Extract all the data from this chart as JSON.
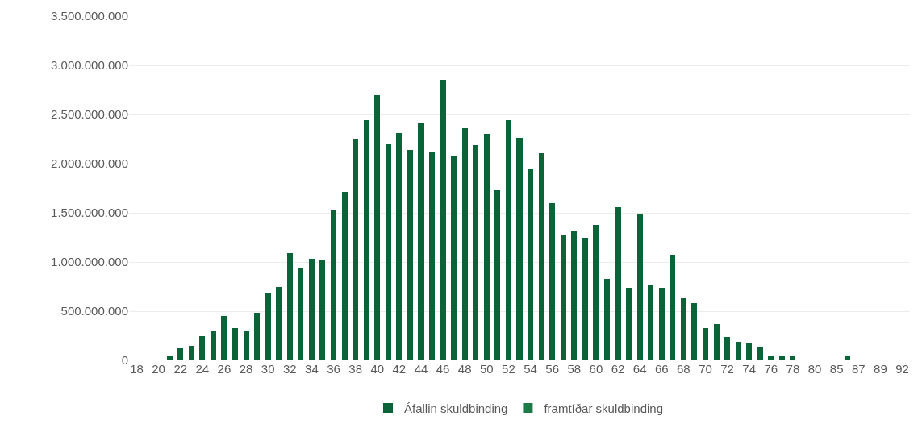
{
  "chart_data": {
    "type": "bar",
    "stacked": true,
    "categories": [
      "18",
      null,
      "20",
      null,
      "22",
      null,
      "24",
      null,
      "26",
      null,
      "28",
      null,
      "30",
      null,
      "32",
      null,
      "34",
      null,
      "36",
      null,
      "38",
      null,
      "40",
      null,
      "42",
      null,
      "44",
      null,
      "46",
      null,
      "48",
      null,
      "50",
      null,
      "52",
      null,
      "54",
      null,
      "56",
      null,
      "58",
      null,
      "60",
      null,
      "62",
      null,
      "64",
      null,
      "66",
      null,
      "68",
      null,
      "70",
      null,
      "72",
      null,
      "74",
      null,
      "76",
      null,
      "78",
      null,
      "80",
      null,
      "85",
      null,
      "87",
      null,
      "89",
      null,
      "92"
    ],
    "series": [
      {
        "name": "Áfallin skuldbinding",
        "color": "#0b6338",
        "values": [
          null,
          null,
          10000000,
          40000000,
          135000000,
          150000000,
          245000000,
          300000000,
          450000000,
          330000000,
          295000000,
          485000000,
          685000000,
          750000000,
          1090000000,
          945000000,
          1030000000,
          1025000000,
          1535000000,
          1715000000,
          2245000000,
          2445000000,
          2700000000,
          2200000000,
          2310000000,
          2140000000,
          2420000000,
          2120000000,
          2850000000,
          2085000000,
          2360000000,
          2190000000,
          2300000000,
          1730000000,
          2440000000,
          2260000000,
          1945000000,
          2105000000,
          1600000000,
          1280000000,
          1320000000,
          1245000000,
          1380000000,
          825000000,
          1560000000,
          740000000,
          1480000000,
          760000000,
          740000000,
          1070000000,
          640000000,
          580000000,
          330000000,
          370000000,
          240000000,
          190000000,
          175000000,
          140000000,
          50000000,
          50000000,
          45000000,
          10000000,
          null,
          10000000,
          null,
          40000000,
          null,
          null,
          null,
          null,
          null
        ]
      },
      {
        "name": "framtíðar skuldbinding",
        "color": "#1c7a45",
        "values": [
          null,
          null,
          null,
          null,
          null,
          null,
          null,
          null,
          null,
          null,
          null,
          null,
          null,
          null,
          null,
          null,
          null,
          null,
          null,
          null,
          null,
          null,
          null,
          null,
          null,
          null,
          null,
          null,
          null,
          null,
          null,
          null,
          null,
          null,
          null,
          null,
          null,
          null,
          null,
          null,
          null,
          null,
          null,
          null,
          null,
          null,
          null,
          null,
          null,
          null,
          null,
          null,
          null,
          null,
          null,
          null,
          null,
          null,
          null,
          null,
          null,
          null,
          null,
          null,
          null,
          null,
          null,
          null,
          null,
          null,
          null
        ]
      }
    ],
    "ylim": [
      0,
      3500000000
    ],
    "yticks": [
      {
        "value": 0,
        "label": "0"
      },
      {
        "value": 500000000,
        "label": "500.000.000"
      },
      {
        "value": 1000000000,
        "label": "1.000.000.000"
      },
      {
        "value": 1500000000,
        "label": "1.500.000.000"
      },
      {
        "value": 2000000000,
        "label": "2.000.000.000"
      },
      {
        "value": 2500000000,
        "label": "2.500.000.000"
      },
      {
        "value": 3000000000,
        "label": "3.000.000.000"
      },
      {
        "value": 3500000000,
        "label": "3.500.000.000"
      }
    ],
    "grid": "y",
    "legend": "bottom"
  }
}
